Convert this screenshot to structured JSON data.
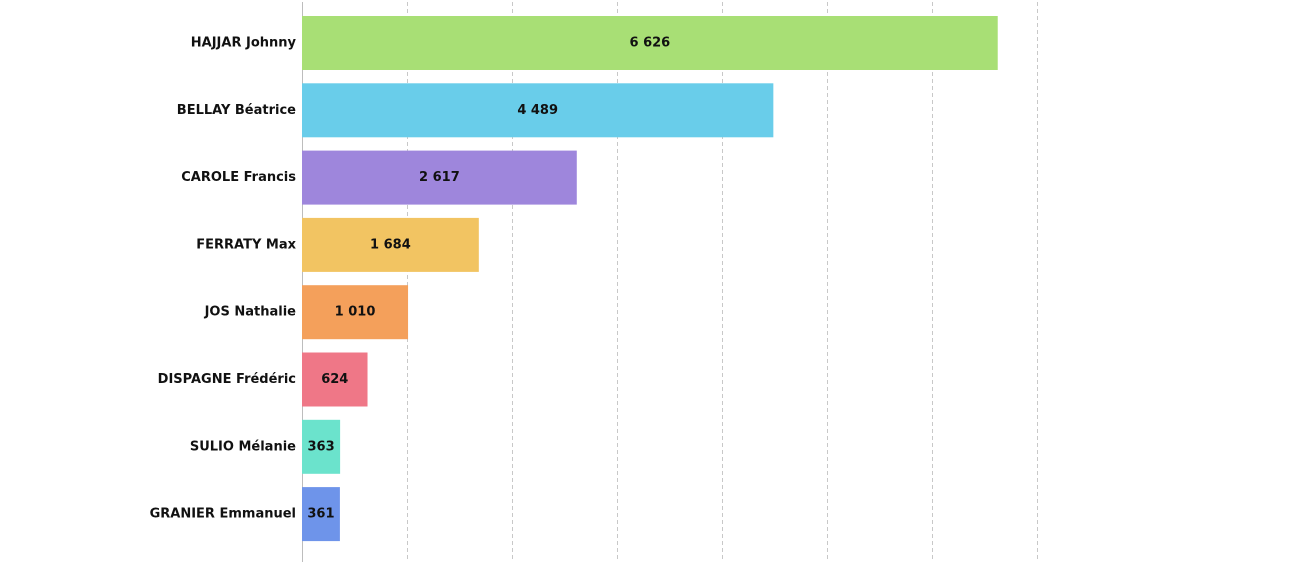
{
  "chart_data": {
    "type": "bar",
    "orientation": "horizontal",
    "categories": [
      "HAJJAR Johnny",
      "BELLAY Béatrice",
      "CAROLE Francis",
      "FERRATY Max",
      "JOS Nathalie",
      "DISPAGNE Frédéric",
      "SULIO Mélanie",
      "GRANIER Emmanuel"
    ],
    "values": [
      6626,
      4489,
      2617,
      1684,
      1010,
      624,
      363,
      361
    ],
    "value_labels": [
      "6 626",
      "4 489",
      "2 617",
      "1 684",
      "1 010",
      "624",
      "363",
      "361"
    ],
    "colors": [
      "#a8df75",
      "#69cdea",
      "#9e86dc",
      "#f2c462",
      "#f4a05b",
      "#ef7787",
      "#6be3cc",
      "#6e94ea"
    ],
    "xlim": [
      0,
      7000
    ],
    "x_grid_step": 1000,
    "grid": true,
    "legend": "none",
    "title": "",
    "xlabel": "",
    "ylabel": ""
  }
}
